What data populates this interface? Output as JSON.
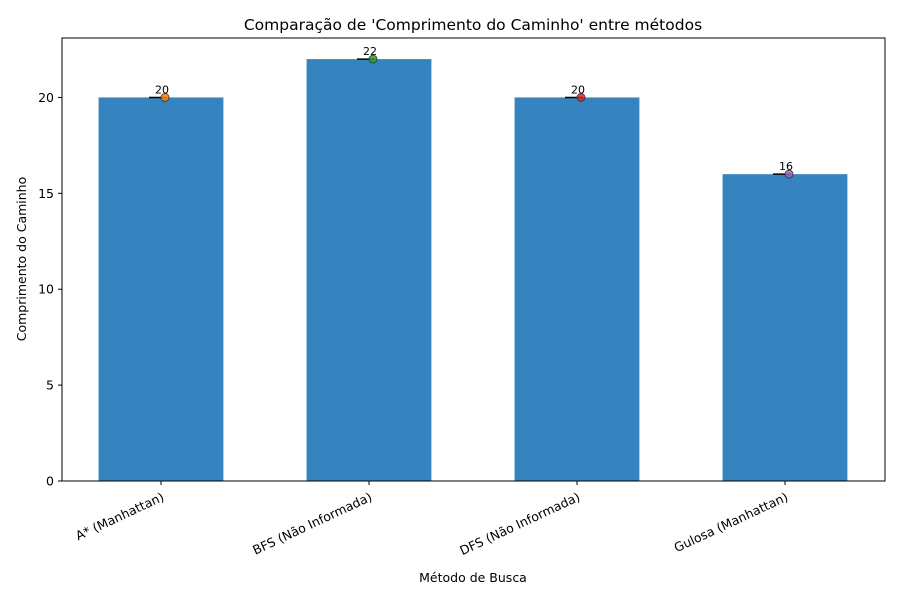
{
  "chart_data": {
    "type": "bar",
    "title": "Comparação de 'Comprimento do Caminho' entre métodos",
    "xlabel": "Método de Busca",
    "ylabel": "Comprimento do Caminho",
    "categories": [
      "A* (Manhattan)",
      "BFS (Não Informada)",
      "DFS (Não Informada)",
      "Gulosa (Manhattan)"
    ],
    "values": [
      20,
      22,
      20,
      16
    ],
    "point_values": [
      20,
      22,
      20,
      16
    ],
    "data_labels": [
      "20",
      "22",
      "20",
      "16"
    ],
    "bar_color": "#3584bf",
    "point_colors": [
      "#ff7f0e",
      "#2ca02c",
      "#d62728",
      "#9467bd"
    ],
    "ylim": [
      0,
      23.1
    ],
    "yticks": [
      0,
      5,
      10,
      15,
      20
    ],
    "grid": false,
    "legend": "none"
  }
}
